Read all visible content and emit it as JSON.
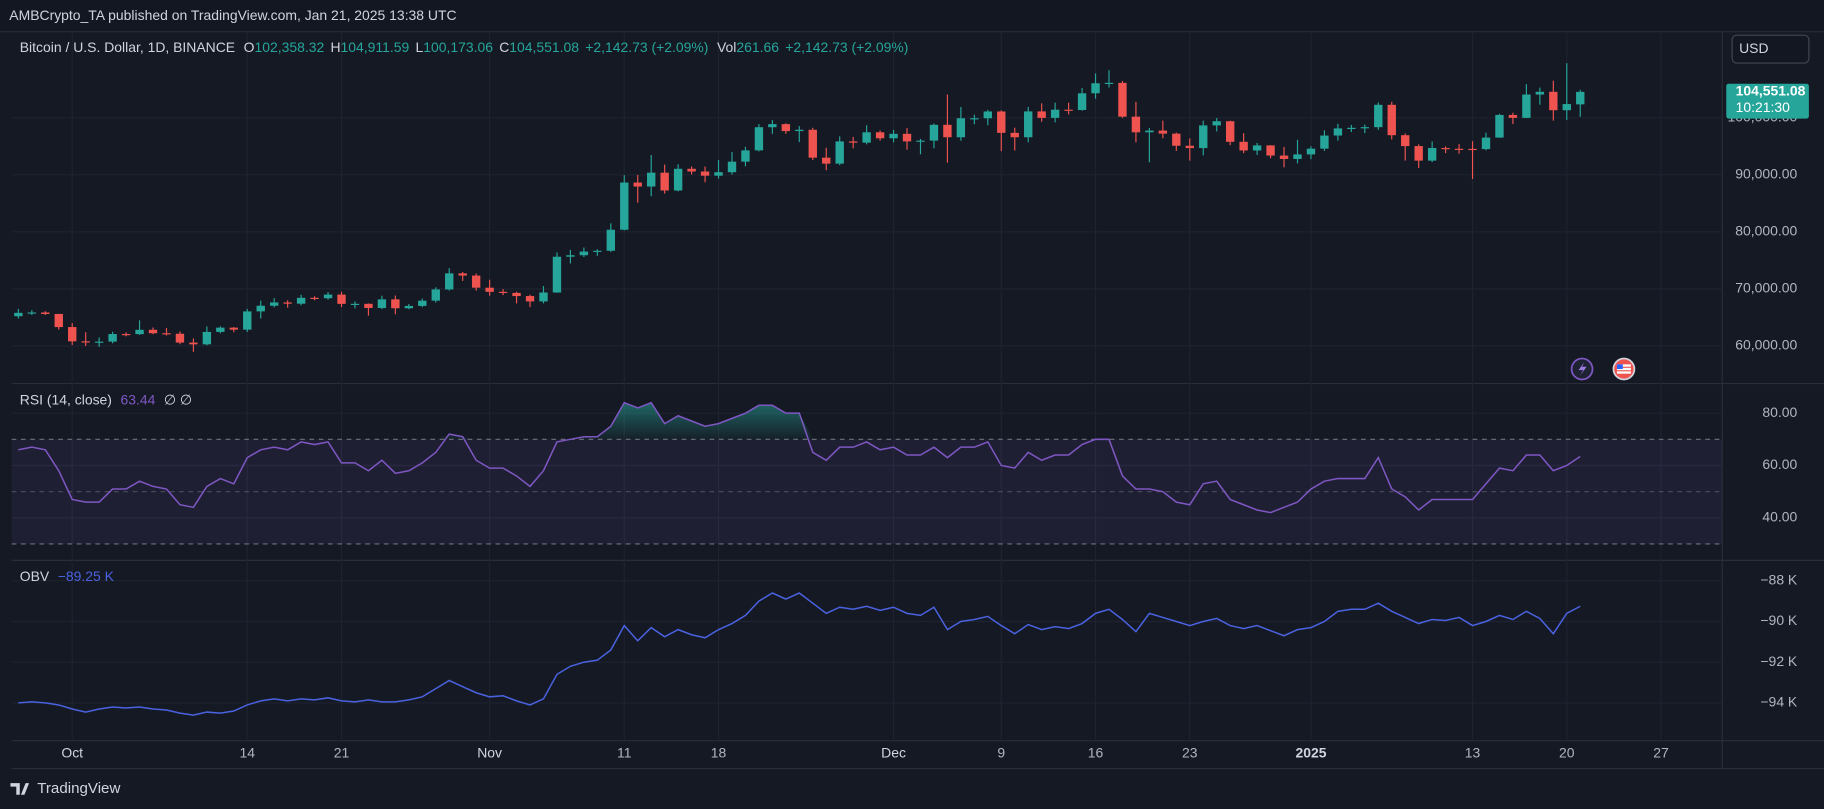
{
  "header": {
    "text": "AMBCrypto_TA published on TradingView.com, Jan 21, 2025 13:38 UTC"
  },
  "legend": {
    "symbol": "Bitcoin / U.S. Dollar, 1D, BINANCE",
    "o_label": "O",
    "open": "102,358.32",
    "h_label": "H",
    "high": "104,911.59",
    "l_label": "L",
    "low": "100,173.06",
    "c_label": "C",
    "close": "104,551.08",
    "change": "+2,142.73 (+2.09%)",
    "vol_label": "Vol",
    "volume": "261.66",
    "vol_change": "+2,142.73 (+2.09%)"
  },
  "currency": "USD",
  "price_tag": {
    "price": "104,551.08",
    "countdown": "10:21:30"
  },
  "footer": {
    "brand": "TradingView"
  },
  "chart_data": [
    {
      "type": "candlestick",
      "up_color": "#26a69a",
      "down_color": "#ef5350",
      "grid": true,
      "xlim": [
        -0.5,
        126.5
      ],
      "ylim": [
        53700,
        114900
      ],
      "yticks": [
        {
          "value": 60000,
          "label": "60,000.00"
        },
        {
          "value": 70000,
          "label": "70,000.00"
        },
        {
          "value": 80000,
          "label": "80,000.00"
        },
        {
          "value": 90000,
          "label": "90,000.00"
        },
        {
          "value": 100000,
          "label": "100,000.00"
        }
      ],
      "open": [
        65200,
        65800,
        65860,
        65600,
        63300,
        60800,
        60650,
        60750,
        62080,
        62060,
        62820,
        62220,
        62130,
        60580,
        60270,
        62450,
        63200,
        62850,
        66050,
        67040,
        67620,
        67400,
        68430,
        68360,
        69000,
        67370,
        67380,
        66650,
        68160,
        66600,
        67010,
        67930,
        69900,
        72720,
        72330,
        70210,
        69480,
        69290,
        68740,
        67800,
        69360,
        75640,
        75900,
        76540,
        76680,
        80370,
        88650,
        87950,
        90380,
        87250,
        91060,
        90580,
        89850,
        90460,
        92310,
        94290,
        98350,
        98890,
        97670,
        97900,
        93010,
        91960,
        95860,
        95640,
        97460,
        96410,
        97190,
        95860,
        96000,
        98770,
        96590,
        99920,
        99920,
        101110,
        97360,
        96590,
        101120,
        99990,
        101420,
        101370,
        104300,
        106060,
        106130,
        100200,
        97460,
        97760,
        97220,
        95100,
        94690,
        98670,
        99400,
        95790,
        94270,
        95160,
        93380,
        92780,
        93580,
        94590,
        96890,
        98140,
        98240,
        98360,
        102280,
        96950,
        95040,
        92490,
        94700,
        94570,
        94550,
        94510,
        96530,
        100500,
        99990,
        104080,
        104560,
        101330,
        102358.32
      ],
      "high": [
        66500,
        66250,
        66080,
        65620,
        64000,
        62400,
        61480,
        62480,
        62370,
        64480,
        63230,
        63160,
        62540,
        61300,
        63420,
        63430,
        63300,
        66490,
        67950,
        68380,
        68000,
        68970,
        68700,
        69450,
        69500,
        67800,
        67450,
        68800,
        68830,
        67350,
        68300,
        70270,
        73620,
        72960,
        72700,
        71600,
        69950,
        69480,
        68980,
        70500,
        76400,
        76850,
        77250,
        76950,
        81500,
        89940,
        89980,
        93480,
        91800,
        91850,
        91460,
        91450,
        92600,
        94000,
        94900,
        98900,
        99600,
        99050,
        98550,
        98250,
        94750,
        96750,
        96650,
        98700,
        97800,
        97900,
        98200,
        96300,
        99000,
        104090,
        101900,
        100550,
        101400,
        101300,
        98270,
        101900,
        102540,
        102650,
        102650,
        105250,
        107780,
        108350,
        106470,
        102800,
        98200,
        99500,
        97400,
        96400,
        99500,
        99960,
        99500,
        97300,
        95600,
        95200,
        94900,
        96150,
        95000,
        97800,
        98950,
        98750,
        98800,
        102700,
        102800,
        97250,
        95350,
        95850,
        95000,
        95400,
        95900,
        97380,
        100700,
        100900,
        105900,
        105300,
        106500,
        109590,
        104911.59
      ],
      "low": [
        64800,
        65420,
        65420,
        62850,
        60150,
        59990,
        59830,
        60460,
        61680,
        61930,
        62050,
        61820,
        60300,
        58950,
        60090,
        62200,
        62400,
        62450,
        64800,
        66750,
        66700,
        67120,
        68000,
        68100,
        66800,
        66560,
        65300,
        66450,
        65550,
        66430,
        66800,
        67600,
        69700,
        71400,
        69700,
        68800,
        68900,
        67450,
        66800,
        67450,
        69320,
        74450,
        75600,
        75800,
        76500,
        80250,
        85100,
        86250,
        86700,
        87100,
        90050,
        88700,
        89350,
        90050,
        91500,
        94110,
        97180,
        97200,
        95750,
        92600,
        90800,
        91700,
        94650,
        95350,
        96000,
        95700,
        94400,
        93600,
        94650,
        92120,
        95980,
        98860,
        98700,
        94150,
        94250,
        95700,
        99300,
        99200,
        100600,
        101240,
        103330,
        105320,
        100000,
        95700,
        92200,
        96400,
        94200,
        92500,
        93400,
        97600,
        95200,
        93800,
        93500,
        92900,
        91320,
        92000,
        92750,
        94200,
        96000,
        97500,
        97300,
        97900,
        96200,
        92500,
        91200,
        92250,
        93800,
        93700,
        89260,
        94300,
        96500,
        98900,
        99950,
        102300,
        99500,
        99600,
        100173.06
      ],
      "close": [
        65800,
        65860,
        65600,
        63300,
        60800,
        60650,
        60750,
        62080,
        62060,
        62820,
        62220,
        62130,
        60580,
        60270,
        62450,
        63200,
        62850,
        66050,
        67040,
        67620,
        67400,
        68430,
        68360,
        69000,
        67370,
        67380,
        66650,
        68160,
        66600,
        67010,
        67930,
        69900,
        72720,
        72330,
        70210,
        69480,
        69290,
        68740,
        67800,
        69360,
        75640,
        75900,
        76540,
        76680,
        80370,
        88650,
        87950,
        90380,
        87250,
        91060,
        90580,
        89850,
        90460,
        92310,
        94290,
        98350,
        98890,
        97670,
        97900,
        93010,
        91960,
        95860,
        95640,
        97460,
        96410,
        97190,
        95860,
        96000,
        98770,
        96590,
        99920,
        99920,
        101110,
        97360,
        96590,
        101120,
        99990,
        101420,
        101370,
        104300,
        106060,
        106130,
        100200,
        97460,
        97760,
        97220,
        95100,
        94690,
        98670,
        99400,
        95790,
        94270,
        95160,
        93380,
        92780,
        93580,
        94590,
        96890,
        98140,
        98240,
        98360,
        102280,
        96950,
        95040,
        92490,
        94700,
        94570,
        94550,
        94510,
        96530,
        100500,
        99990,
        104080,
        104560,
        101330,
        102408,
        104551.08
      ]
    },
    {
      "type": "line",
      "name": "RSI (14, close)",
      "legend_value": "63.44",
      "legend_extra": "∅ ∅",
      "color": "#7e57c2",
      "fill_color": "#7e57c2",
      "overbought_color": "#26a69a",
      "bands": [
        70,
        50,
        30
      ],
      "xlim": [
        -0.5,
        126.5
      ],
      "ylim": [
        24.4,
        90.2
      ],
      "yticks": [
        {
          "value": 80,
          "label": "80.00"
        },
        {
          "value": 60,
          "label": "60.00"
        },
        {
          "value": 40,
          "label": "40.00"
        }
      ],
      "values": [
        66,
        67,
        66,
        58,
        47,
        46,
        46,
        51,
        51,
        54,
        52,
        51,
        45,
        44,
        52,
        55,
        53,
        63,
        66,
        67,
        66,
        69,
        68,
        69,
        61,
        61,
        58,
        62,
        57,
        58,
        61,
        65,
        72,
        71,
        62,
        59,
        59,
        56,
        52,
        58,
        69,
        70,
        71,
        71,
        75,
        84,
        82,
        84,
        76,
        79,
        77,
        75,
        76,
        78,
        80,
        83,
        83,
        80,
        80,
        65,
        62,
        67,
        67,
        69,
        66,
        67,
        64,
        64,
        67,
        63,
        67,
        67,
        69,
        60,
        59,
        65,
        62,
        64,
        64,
        68,
        70,
        70,
        56,
        51,
        51,
        50,
        46,
        45,
        53,
        54,
        47,
        45,
        43,
        42,
        44,
        46,
        51,
        54,
        55,
        55,
        55,
        63,
        51,
        48,
        43,
        47,
        47,
        47,
        47,
        53,
        59,
        58,
        64,
        64,
        58,
        60,
        63.44
      ]
    },
    {
      "type": "line",
      "name": "OBV",
      "legend_value": "−89.25 K",
      "color": "#4a62e0",
      "xlim": [
        -0.5,
        126.5
      ],
      "ylim": [
        -95.77,
        -87.14
      ],
      "yticks": [
        {
          "value": -88,
          "label": "−88 K"
        },
        {
          "value": -90,
          "label": "−90 K"
        },
        {
          "value": -92,
          "label": "−92 K"
        },
        {
          "value": -94,
          "label": "−94 K"
        }
      ],
      "xticks": [
        {
          "value": 4,
          "label": "Oct"
        },
        {
          "value": 17,
          "label": "14"
        },
        {
          "value": 24,
          "label": "21"
        },
        {
          "value": 35,
          "label": "Nov"
        },
        {
          "value": 45,
          "label": "11"
        },
        {
          "value": 52,
          "label": "18"
        },
        {
          "value": 65,
          "label": "Dec"
        },
        {
          "value": 73,
          "label": "9"
        },
        {
          "value": 80,
          "label": "16"
        },
        {
          "value": 87,
          "label": "23"
        },
        {
          "value": 96,
          "label": "2025"
        },
        {
          "value": 108,
          "label": "13"
        },
        {
          "value": 115,
          "label": "20"
        },
        {
          "value": 122,
          "label": "27"
        }
      ],
      "values": [
        -94.0,
        -93.95,
        -94.0,
        -94.1,
        -94.3,
        -94.45,
        -94.3,
        -94.2,
        -94.25,
        -94.2,
        -94.3,
        -94.35,
        -94.5,
        -94.6,
        -94.45,
        -94.5,
        -94.4,
        -94.1,
        -93.9,
        -93.8,
        -93.9,
        -93.8,
        -93.85,
        -93.75,
        -93.9,
        -93.95,
        -93.85,
        -93.95,
        -93.95,
        -93.85,
        -93.7,
        -93.3,
        -92.9,
        -93.2,
        -93.5,
        -93.7,
        -93.65,
        -93.9,
        -94.1,
        -93.8,
        -92.6,
        -92.2,
        -92.0,
        -91.9,
        -91.4,
        -90.2,
        -90.95,
        -90.3,
        -90.75,
        -90.4,
        -90.65,
        -90.8,
        -90.4,
        -90.1,
        -89.7,
        -89.0,
        -88.6,
        -88.9,
        -88.6,
        -89.1,
        -89.6,
        -89.3,
        -89.4,
        -89.25,
        -89.45,
        -89.3,
        -89.6,
        -89.7,
        -89.3,
        -90.4,
        -90.0,
        -89.9,
        -89.75,
        -90.2,
        -90.6,
        -90.15,
        -90.4,
        -90.25,
        -90.35,
        -90.1,
        -89.6,
        -89.4,
        -89.9,
        -90.5,
        -89.6,
        -89.8,
        -90.0,
        -90.2,
        -90.0,
        -89.85,
        -90.2,
        -90.35,
        -90.2,
        -90.45,
        -90.7,
        -90.4,
        -90.3,
        -90.0,
        -89.5,
        -89.4,
        -89.4,
        -89.1,
        -89.5,
        -89.8,
        -90.1,
        -89.9,
        -89.95,
        -89.8,
        -90.2,
        -90.0,
        -89.7,
        -89.9,
        -89.5,
        -89.85,
        -90.6,
        -89.6,
        -89.25
      ]
    }
  ]
}
